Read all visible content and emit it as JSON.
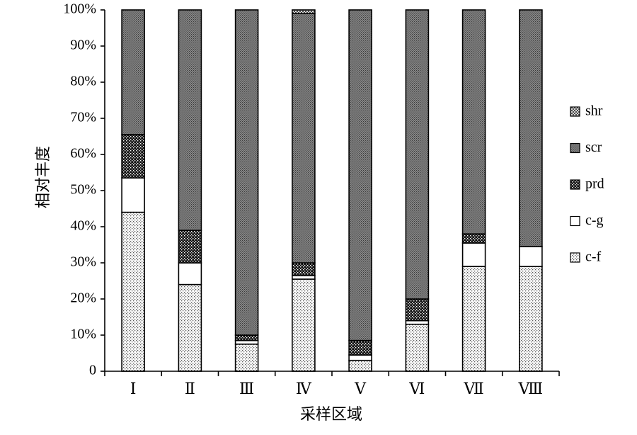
{
  "chart_data": {
    "type": "bar",
    "stacked": true,
    "normalized": true,
    "title": "",
    "xlabel": "采样区域",
    "ylabel": "相对丰度",
    "ylim": [
      0,
      100
    ],
    "y_ticks": [
      "0",
      "10%",
      "20%",
      "30%",
      "40%",
      "50%",
      "60%",
      "70%",
      "80%",
      "90%",
      "100%"
    ],
    "categories": [
      "Ⅰ",
      "Ⅱ",
      "Ⅲ",
      "Ⅳ",
      "Ⅴ",
      "Ⅵ",
      "Ⅶ",
      "Ⅷ"
    ],
    "legend_position": "right",
    "series": [
      {
        "name": "c-f",
        "pattern": "light-dots",
        "values": [
          44,
          24,
          7.5,
          25.5,
          3,
          13,
          29,
          29
        ]
      },
      {
        "name": "c-g",
        "pattern": "white",
        "values": [
          9.5,
          6,
          1,
          1,
          1.5,
          1,
          6.5,
          5.5
        ]
      },
      {
        "name": "prd",
        "pattern": "dark-checker",
        "values": [
          12,
          9,
          1.5,
          3.5,
          4,
          6,
          2.5,
          0
        ]
      },
      {
        "name": "scr",
        "pattern": "dark-dots",
        "values": [
          34.5,
          61,
          90,
          69,
          91.5,
          80,
          62,
          65.5
        ]
      },
      {
        "name": "shr",
        "pattern": "crosshatch",
        "values": [
          0,
          0,
          0,
          1,
          0,
          0,
          0,
          0
        ]
      }
    ]
  }
}
